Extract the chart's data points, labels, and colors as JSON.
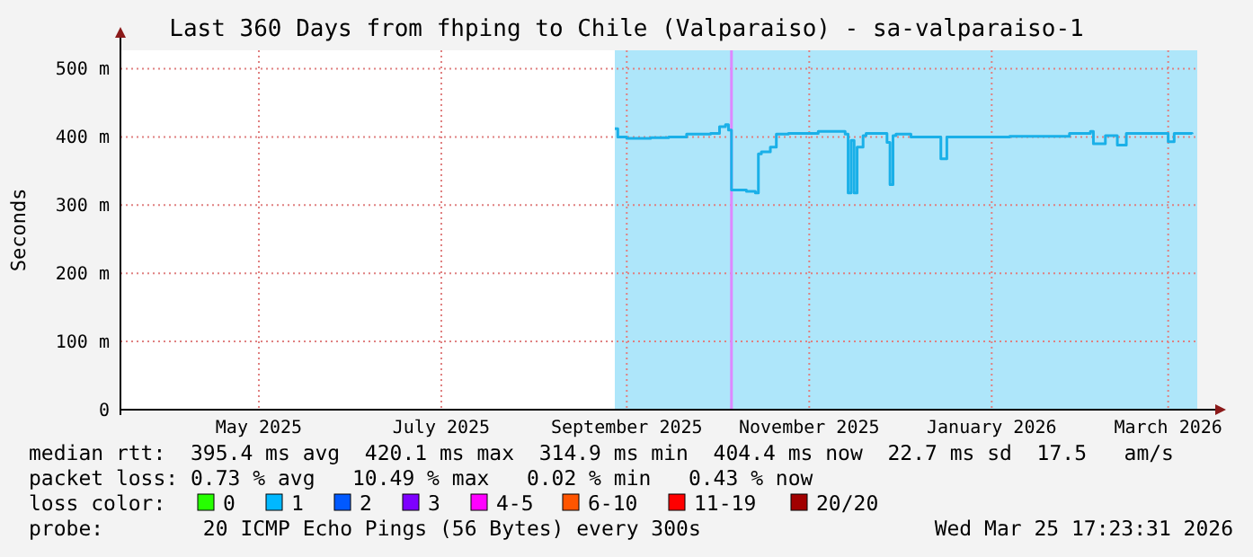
{
  "chart_data": {
    "type": "step",
    "title": "Last 360 Days from fhping to Chile (Valparaiso) - sa-valparaiso-1",
    "ylabel": "Seconds",
    "x": [
      "2025-09-12",
      "2025-09-13",
      "2025-09-16",
      "2025-09-24",
      "2025-09-30",
      "2025-10-06",
      "2025-10-14",
      "2025-10-17",
      "2025-10-19",
      "2025-10-20",
      "2025-10-21",
      "2025-10-26",
      "2025-10-28",
      "2025-10-29",
      "2025-10-30",
      "2025-10-31",
      "2025-11-03",
      "2025-11-05",
      "2025-11-09",
      "2025-11-19",
      "2025-11-28",
      "2025-11-29",
      "2025-11-30",
      "2025-12-01",
      "2025-12-02",
      "2025-12-04",
      "2025-12-05",
      "2025-12-12",
      "2025-12-13",
      "2025-12-14",
      "2025-12-15",
      "2025-12-20",
      "2025-12-29",
      "2025-12-30",
      "2026-01-01",
      "2026-01-22",
      "2026-02-11",
      "2026-02-18",
      "2026-02-19",
      "2026-02-23",
      "2026-02-27",
      "2026-03-02",
      "2026-03-15",
      "2026-03-16",
      "2026-03-18",
      "2026-03-24"
    ],
    "series": [
      {
        "color": "#1ab0e8",
        "values": [
          412,
          400,
          398,
          399,
          400,
          404,
          405,
          415,
          418,
          410,
          322,
          320,
          320,
          318,
          375,
          378,
          385,
          404,
          405,
          408,
          404,
          318,
          395,
          318,
          385,
          402,
          405,
          392,
          330,
          402,
          404,
          400,
          400,
          368,
          400,
          401,
          405,
          408,
          390,
          402,
          388,
          405,
          405,
          393,
          405,
          404
        ]
      }
    ],
    "xlim": [
      "2025-03-30T17:23",
      "2026-03-25T17:23"
    ],
    "xticks": [
      {
        "value": "2025-05-16",
        "label": "May 2025"
      },
      {
        "value": "2025-07-16",
        "label": "July 2025"
      },
      {
        "value": "2025-09-16",
        "label": "September 2025"
      },
      {
        "value": "2025-11-16",
        "label": "November 2025"
      },
      {
        "value": "2026-01-16",
        "label": "January 2026"
      },
      {
        "value": "2026-03-16",
        "label": "March 2026"
      }
    ],
    "ylim": [
      0,
      527
    ],
    "yticks": [
      {
        "value": 0,
        "label": "0"
      },
      {
        "value": 100,
        "label": "100 m"
      },
      {
        "value": 200,
        "label": "200 m"
      },
      {
        "value": 300,
        "label": "300 m"
      },
      {
        "value": 400,
        "label": "400 m"
      },
      {
        "value": 500,
        "label": "500 m"
      }
    ],
    "grid": true,
    "bands": [
      {
        "axis": "x",
        "from": "2025-09-12",
        "to": "2026-03-25T17:23",
        "color": "#aee6fa"
      }
    ],
    "ref_lines": [
      {
        "axis": "x",
        "value": "2025-10-21",
        "color": "#dd88ff"
      }
    ],
    "annotations": [
      "median rtt:  395.4 ms avg  420.1 ms max  314.9 ms min  404.4 ms now  22.7 ms sd  17.5   am/s",
      "packet loss: 0.73 % avg   10.49 % max   0.02 % min   0.43 % now",
      "loss color:",
      "0",
      "1",
      "2",
      "3",
      "4-5",
      "6-10",
      "11-19",
      "20/20",
      "probe:        20 ICMP Echo Pings (56 Bytes) every 300s",
      "Wed Mar 25 17:23:31 2026"
    ]
  }
}
